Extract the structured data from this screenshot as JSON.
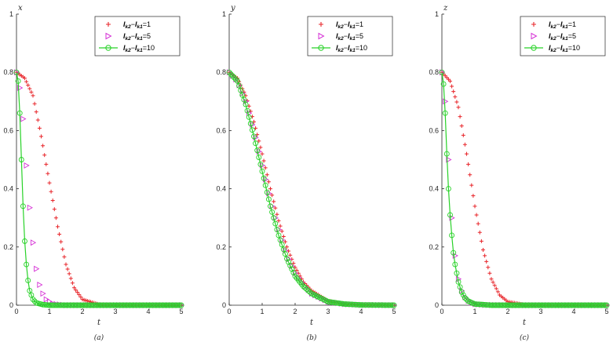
{
  "chart_data": [
    {
      "type": "line",
      "panel": "a",
      "caption": "(a)",
      "ylabel": "x",
      "xlabel": "t",
      "xlim": [
        0,
        5
      ],
      "ylim": [
        0,
        1
      ],
      "xticks": [
        "0",
        "1",
        "2",
        "3",
        "4",
        "5"
      ],
      "yticks": [
        "0",
        "0.2",
        "0.4",
        "0.6",
        "0.8",
        "1"
      ],
      "legend_position": "top-right",
      "grid": false,
      "series": [
        {
          "name": "I_k2−I_k1=1",
          "legend": {
            "a": "I",
            "as": "k2",
            "b": "I",
            "bs": "k1",
            "val": "=1"
          },
          "color": "#e8262b",
          "marker": "plus",
          "line": false,
          "x": [
            0,
            0.25,
            0.5,
            0.75,
            1.0,
            1.25,
            1.5,
            1.75,
            2.0,
            2.5,
            3,
            4,
            5
          ],
          "y": [
            0.8,
            0.78,
            0.72,
            0.58,
            0.42,
            0.27,
            0.14,
            0.06,
            0.02,
            0.003,
            0.001,
            0.0,
            0.0
          ]
        },
        {
          "name": "I_k2−I_k1=5",
          "legend": {
            "a": "I",
            "as": "k2",
            "b": "I",
            "bs": "k1",
            "val": "=5"
          },
          "color": "#d633d6",
          "marker": "triangle-right",
          "line": false,
          "x": [
            0,
            0.15,
            0.25,
            0.35,
            0.45,
            0.55,
            0.65,
            0.75,
            0.9,
            1.1,
            1.5,
            2,
            3,
            4,
            5
          ],
          "y": [
            0.8,
            0.72,
            0.56,
            0.4,
            0.27,
            0.16,
            0.09,
            0.05,
            0.02,
            0.005,
            0.0,
            0.0,
            0.0,
            0.0,
            0.0
          ]
        },
        {
          "name": "I_k2−I_k1=10",
          "legend": {
            "a": "I",
            "as": "k2",
            "b": "I",
            "bs": "k1",
            "val": "=10"
          },
          "color": "#28d228",
          "marker": "circle",
          "line": true,
          "x": [
            0,
            0.05,
            0.1,
            0.15,
            0.2,
            0.25,
            0.3,
            0.35,
            0.4,
            0.5,
            0.6,
            0.8,
            1.0,
            1.5,
            2,
            3,
            4,
            5
          ],
          "y": [
            0.8,
            0.77,
            0.66,
            0.5,
            0.34,
            0.22,
            0.14,
            0.085,
            0.05,
            0.02,
            0.008,
            0.002,
            0.0,
            0.0,
            0.0,
            0.0,
            0.0,
            0.0
          ]
        }
      ]
    },
    {
      "type": "line",
      "panel": "b",
      "caption": "(b)",
      "ylabel": "y",
      "xlabel": "t",
      "xlim": [
        0,
        5
      ],
      "ylim": [
        0,
        1
      ],
      "xticks": [
        "0",
        "1",
        "2",
        "3",
        "4",
        "5"
      ],
      "yticks": [
        "0",
        "0.2",
        "0.4",
        "0.6",
        "0.8",
        "1"
      ],
      "legend_position": "top-right",
      "grid": false,
      "series": [
        {
          "name": "I_k2−I_k1=1",
          "legend": {
            "a": "I",
            "as": "k2",
            "b": "I",
            "bs": "k1",
            "val": "=1"
          },
          "color": "#e8262b",
          "marker": "plus",
          "line": false,
          "x": [
            0,
            0.25,
            0.5,
            0.75,
            1.0,
            1.25,
            1.5,
            1.75,
            2.0,
            2.25,
            2.5,
            3,
            3.5,
            4,
            5
          ],
          "y": [
            0.8,
            0.78,
            0.72,
            0.63,
            0.52,
            0.4,
            0.29,
            0.2,
            0.13,
            0.08,
            0.05,
            0.015,
            0.005,
            0.001,
            0.0
          ]
        },
        {
          "name": "I_k2−I_k1=5",
          "legend": {
            "a": "I",
            "as": "k2",
            "b": "I",
            "bs": "k1",
            "val": "=5"
          },
          "color": "#d633d6",
          "marker": "triangle-right",
          "line": false,
          "x": [
            0,
            0.25,
            0.5,
            0.75,
            1.0,
            1.25,
            1.5,
            1.75,
            2.0,
            2.25,
            2.5,
            3,
            3.5,
            4,
            5
          ],
          "y": [
            0.8,
            0.77,
            0.7,
            0.6,
            0.48,
            0.36,
            0.26,
            0.17,
            0.11,
            0.07,
            0.04,
            0.012,
            0.004,
            0.001,
            0.0
          ]
        },
        {
          "name": "I_k2−I_k1=10",
          "legend": {
            "a": "I",
            "as": "k2",
            "b": "I",
            "bs": "k1",
            "val": "=10"
          },
          "color": "#28d228",
          "marker": "circle",
          "line": true,
          "x": [
            0,
            0.25,
            0.5,
            0.75,
            1.0,
            1.25,
            1.5,
            1.75,
            2.0,
            2.25,
            2.5,
            3,
            3.5,
            4,
            5
          ],
          "y": [
            0.8,
            0.77,
            0.69,
            0.58,
            0.46,
            0.34,
            0.24,
            0.16,
            0.1,
            0.065,
            0.04,
            0.012,
            0.004,
            0.001,
            0.0
          ]
        }
      ]
    },
    {
      "type": "line",
      "panel": "c",
      "caption": "(c)",
      "ylabel": "z",
      "xlabel": "t",
      "xlim": [
        0,
        5
      ],
      "ylim": [
        0,
        1
      ],
      "xticks": [
        "0",
        "1",
        "2",
        "3",
        "4",
        "5"
      ],
      "yticks": [
        "0",
        "0.2",
        "0.4",
        "0.6",
        "0.8",
        "1"
      ],
      "legend_position": "top-right",
      "grid": false,
      "series": [
        {
          "name": "I_k2−I_k1=1",
          "legend": {
            "a": "I",
            "as": "k2",
            "b": "I",
            "bs": "k1",
            "val": "=1"
          },
          "color": "#e8262b",
          "marker": "plus",
          "line": false,
          "x": [
            0,
            0.25,
            0.5,
            0.75,
            1.0,
            1.25,
            1.5,
            1.75,
            2.0,
            2.5,
            3,
            4,
            5
          ],
          "y": [
            0.8,
            0.77,
            0.68,
            0.52,
            0.34,
            0.19,
            0.09,
            0.035,
            0.012,
            0.002,
            0.0,
            0.0,
            0.0
          ]
        },
        {
          "name": "I_k2−I_k1=5",
          "legend": {
            "a": "I",
            "as": "k2",
            "b": "I",
            "bs": "k1",
            "val": "=5"
          },
          "color": "#d633d6",
          "marker": "triangle-right",
          "line": false,
          "x": [
            0,
            0.1,
            0.2,
            0.3,
            0.4,
            0.5,
            0.6,
            0.7,
            0.8,
            1.0,
            1.3,
            2,
            3,
            4,
            5
          ],
          "y": [
            0.8,
            0.7,
            0.5,
            0.3,
            0.17,
            0.09,
            0.05,
            0.028,
            0.015,
            0.004,
            0.001,
            0.0,
            0.0,
            0.0,
            0.0
          ]
        },
        {
          "name": "I_k2−I_k1=10",
          "legend": {
            "a": "I",
            "as": "k2",
            "b": "I",
            "bs": "k1",
            "val": "=10"
          },
          "color": "#28d228",
          "marker": "circle",
          "line": true,
          "x": [
            0,
            0.05,
            0.1,
            0.15,
            0.2,
            0.25,
            0.3,
            0.35,
            0.4,
            0.5,
            0.6,
            0.7,
            0.8,
            1.0,
            1.5,
            2,
            3,
            4,
            5
          ],
          "y": [
            0.8,
            0.76,
            0.66,
            0.52,
            0.4,
            0.31,
            0.24,
            0.18,
            0.14,
            0.08,
            0.045,
            0.025,
            0.014,
            0.004,
            0.0,
            0.0,
            0.0,
            0.0,
            0.0
          ]
        }
      ]
    }
  ]
}
